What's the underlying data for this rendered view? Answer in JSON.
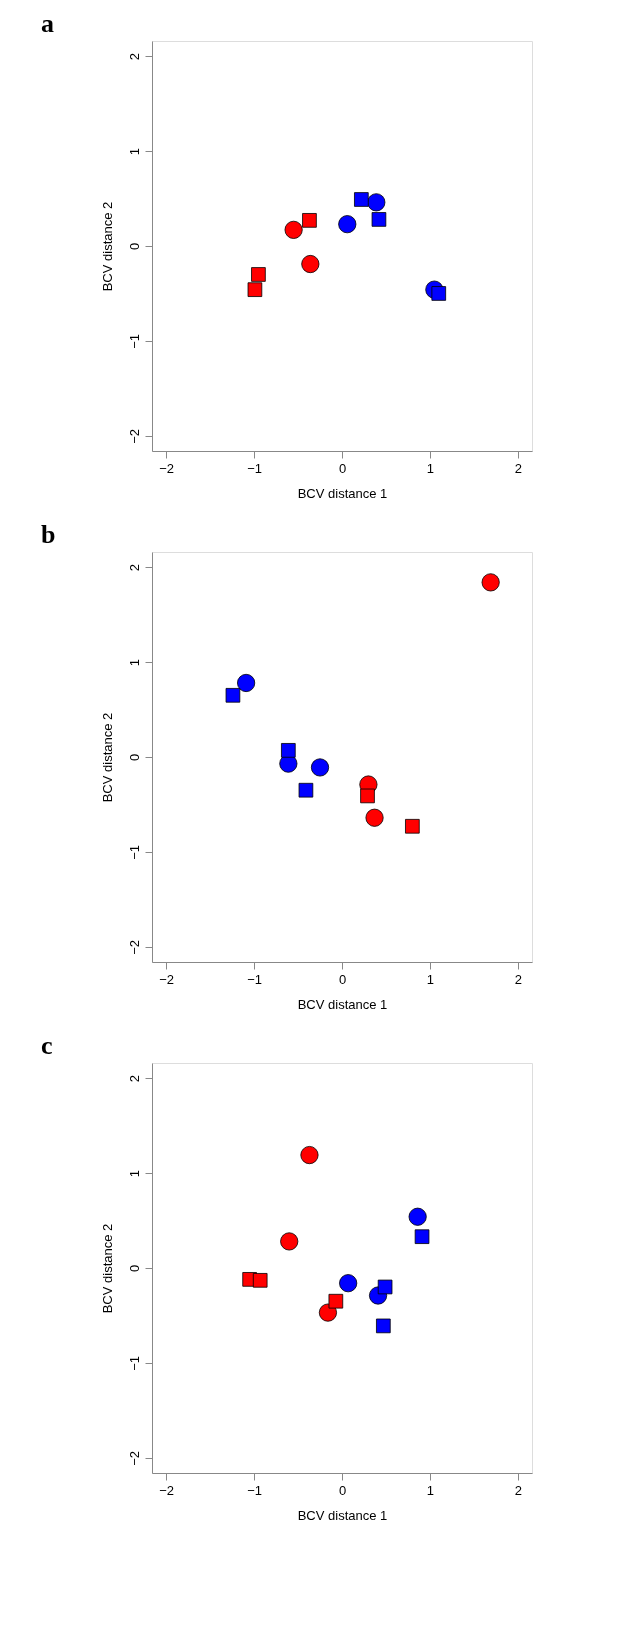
{
  "chart_data": [
    {
      "type": "scatter",
      "title": "a",
      "xlabel": "BCV distance 1",
      "ylabel": "BCV distance 2",
      "xlim": [
        -2.16,
        2.16
      ],
      "ylim": [
        -2.16,
        2.16
      ],
      "xticks": [
        -2,
        -1,
        0,
        1,
        2
      ],
      "yticks": [
        -2,
        -1,
        0,
        1,
        2
      ],
      "series": [
        {
          "color": "#ff0000",
          "marker": "circle",
          "x": [
            -0.55,
            -0.36
          ],
          "values": [
            0.17,
            -0.19
          ]
        },
        {
          "color": "#ff0000",
          "marker": "square",
          "x": [
            -0.37,
            -0.95,
            -0.99
          ],
          "values": [
            0.27,
            -0.3,
            -0.46
          ]
        },
        {
          "color": "#0000ff",
          "marker": "circle",
          "x": [
            0.06,
            0.39,
            1.05
          ],
          "values": [
            0.23,
            0.46,
            -0.46
          ]
        },
        {
          "color": "#0000ff",
          "marker": "square",
          "x": [
            0.22,
            0.42,
            1.1
          ],
          "values": [
            0.49,
            0.28,
            -0.5
          ]
        }
      ]
    },
    {
      "type": "scatter",
      "title": "b",
      "xlabel": "BCV distance 1",
      "ylabel": "BCV distance 2",
      "xlim": [
        -2.16,
        2.16
      ],
      "ylim": [
        -2.16,
        2.16
      ],
      "xticks": [
        -2,
        -1,
        0,
        1,
        2
      ],
      "yticks": [
        -2,
        -1,
        0,
        1,
        2
      ],
      "series": [
        {
          "color": "#ff0000",
          "marker": "circle",
          "x": [
            1.69,
            0.3,
            0.37
          ],
          "values": [
            1.84,
            -0.29,
            -0.64
          ]
        },
        {
          "color": "#ff0000",
          "marker": "square",
          "x": [
            0.29,
            0.8
          ],
          "values": [
            -0.41,
            -0.73
          ]
        },
        {
          "color": "#0000ff",
          "marker": "circle",
          "x": [
            -1.09,
            -0.61,
            -0.25
          ],
          "values": [
            0.78,
            -0.07,
            -0.11
          ]
        },
        {
          "color": "#0000ff",
          "marker": "square",
          "x": [
            -1.24,
            -0.61,
            -0.41
          ],
          "values": [
            0.65,
            0.07,
            -0.35
          ]
        }
      ]
    },
    {
      "type": "scatter",
      "title": "c",
      "xlabel": "BCV distance 1",
      "ylabel": "BCV distance 2",
      "xlim": [
        -2.16,
        2.16
      ],
      "ylim": [
        -2.16,
        2.16
      ],
      "xticks": [
        -2,
        -1,
        0,
        1,
        2
      ],
      "yticks": [
        -2,
        -1,
        0,
        1,
        2
      ],
      "series": [
        {
          "color": "#ff0000",
          "marker": "circle",
          "x": [
            -0.37,
            -0.6,
            -0.16
          ],
          "values": [
            1.19,
            0.28,
            -0.47
          ]
        },
        {
          "color": "#ff0000",
          "marker": "square",
          "x": [
            -1.05,
            -0.93,
            -0.07
          ],
          "values": [
            -0.12,
            -0.13,
            -0.35
          ]
        },
        {
          "color": "#0000ff",
          "marker": "circle",
          "x": [
            0.07,
            0.86,
            0.41
          ],
          "values": [
            -0.16,
            0.54,
            -0.29
          ]
        },
        {
          "color": "#0000ff",
          "marker": "square",
          "x": [
            0.91,
            0.49,
            0.47
          ],
          "values": [
            0.33,
            -0.2,
            -0.61
          ]
        }
      ]
    }
  ]
}
